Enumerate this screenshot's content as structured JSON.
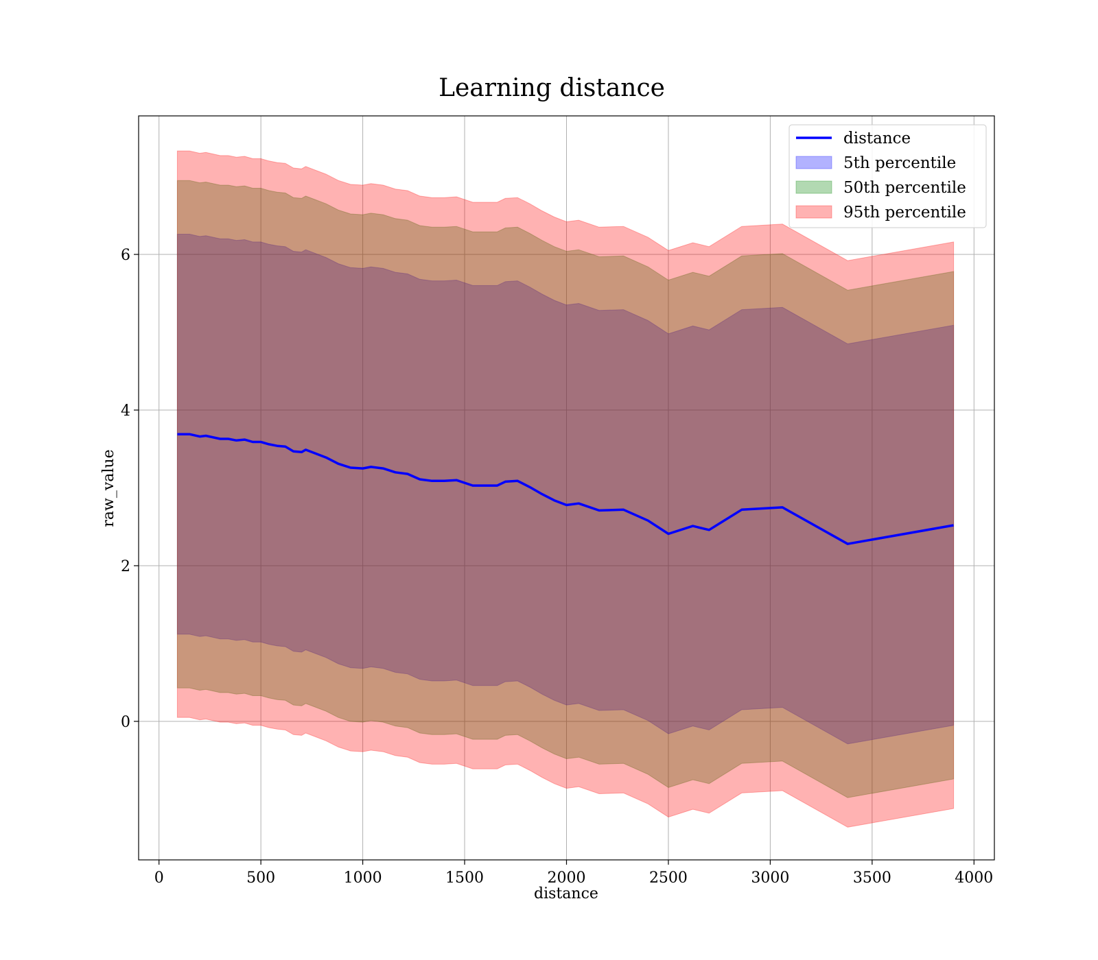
{
  "chart_data": {
    "type": "line",
    "title": "Learning distance",
    "xlabel": "distance",
    "ylabel": "raw_value",
    "xlim": [
      -100,
      4100
    ],
    "ylim": [
      -1.78,
      7.78
    ],
    "xticks": [
      0,
      500,
      1000,
      1500,
      2000,
      2500,
      3000,
      3500,
      4000
    ],
    "yticks": [
      0,
      2,
      4,
      6
    ],
    "grid": true,
    "legend_position": "top-right",
    "x": [
      90,
      150,
      200,
      230,
      300,
      340,
      380,
      420,
      460,
      500,
      540,
      580,
      620,
      660,
      700,
      720,
      760,
      820,
      880,
      940,
      1000,
      1040,
      1100,
      1160,
      1220,
      1280,
      1340,
      1400,
      1460,
      1540,
      1600,
      1660,
      1700,
      1760,
      1820,
      1880,
      1940,
      2000,
      2060,
      2160,
      2280,
      2400,
      2500,
      2620,
      2700,
      2860,
      3060,
      3380,
      3900
    ],
    "series": [
      {
        "name": "distance",
        "kind": "line",
        "color": "#0000ff",
        "values": [
          3.69,
          3.69,
          3.66,
          3.67,
          3.63,
          3.63,
          3.61,
          3.62,
          3.59,
          3.59,
          3.56,
          3.54,
          3.53,
          3.47,
          3.46,
          3.49,
          3.45,
          3.39,
          3.31,
          3.26,
          3.25,
          3.27,
          3.25,
          3.2,
          3.18,
          3.11,
          3.09,
          3.09,
          3.1,
          3.03,
          3.03,
          3.03,
          3.08,
          3.09,
          3.01,
          2.92,
          2.84,
          2.78,
          2.8,
          2.71,
          2.72,
          2.58,
          2.41,
          2.51,
          2.46,
          2.72,
          2.75,
          2.28,
          2.52
        ]
      },
      {
        "name": "5th percentile",
        "kind": "band",
        "color": "#0000ff",
        "lower": [
          1.12,
          1.12,
          1.09,
          1.1,
          1.06,
          1.06,
          1.04,
          1.05,
          1.02,
          1.02,
          0.99,
          0.97,
          0.96,
          0.9,
          0.89,
          0.92,
          0.88,
          0.82,
          0.74,
          0.69,
          0.68,
          0.7,
          0.68,
          0.63,
          0.61,
          0.54,
          0.52,
          0.52,
          0.53,
          0.46,
          0.46,
          0.46,
          0.51,
          0.52,
          0.44,
          0.35,
          0.27,
          0.21,
          0.23,
          0.14,
          0.15,
          0.01,
          -0.16,
          -0.06,
          -0.11,
          0.15,
          0.18,
          -0.29,
          -0.05
        ],
        "upper": [
          6.26,
          6.26,
          6.23,
          6.24,
          6.2,
          6.2,
          6.18,
          6.19,
          6.16,
          6.16,
          6.13,
          6.11,
          6.1,
          6.04,
          6.03,
          6.06,
          6.02,
          5.96,
          5.88,
          5.83,
          5.82,
          5.84,
          5.82,
          5.77,
          5.75,
          5.68,
          5.66,
          5.66,
          5.67,
          5.6,
          5.6,
          5.6,
          5.65,
          5.66,
          5.58,
          5.49,
          5.41,
          5.35,
          5.37,
          5.28,
          5.29,
          5.15,
          4.98,
          5.08,
          5.03,
          5.29,
          5.32,
          4.85,
          5.09
        ]
      },
      {
        "name": "50th percentile",
        "kind": "band",
        "color": "#008000",
        "lower": [
          0.43,
          0.43,
          0.4,
          0.41,
          0.37,
          0.37,
          0.35,
          0.36,
          0.33,
          0.33,
          0.3,
          0.28,
          0.27,
          0.21,
          0.2,
          0.23,
          0.19,
          0.13,
          0.05,
          0.0,
          -0.01,
          0.01,
          -0.01,
          -0.06,
          -0.08,
          -0.15,
          -0.17,
          -0.17,
          -0.16,
          -0.23,
          -0.23,
          -0.23,
          -0.18,
          -0.17,
          -0.25,
          -0.34,
          -0.42,
          -0.48,
          -0.46,
          -0.55,
          -0.54,
          -0.68,
          -0.85,
          -0.75,
          -0.8,
          -0.54,
          -0.51,
          -0.98,
          -0.74
        ],
        "upper": [
          6.95,
          6.95,
          6.92,
          6.93,
          6.89,
          6.89,
          6.87,
          6.88,
          6.85,
          6.85,
          6.82,
          6.8,
          6.79,
          6.73,
          6.72,
          6.75,
          6.71,
          6.65,
          6.57,
          6.52,
          6.51,
          6.53,
          6.51,
          6.46,
          6.44,
          6.37,
          6.35,
          6.35,
          6.36,
          6.29,
          6.29,
          6.29,
          6.34,
          6.35,
          6.27,
          6.18,
          6.1,
          6.04,
          6.06,
          5.97,
          5.98,
          5.84,
          5.67,
          5.77,
          5.72,
          5.98,
          6.01,
          5.54,
          5.78
        ]
      },
      {
        "name": "95th percentile",
        "kind": "band",
        "color": "#ff0000",
        "lower": [
          0.05,
          0.05,
          0.02,
          0.03,
          -0.01,
          -0.01,
          -0.03,
          -0.02,
          -0.05,
          -0.05,
          -0.08,
          -0.1,
          -0.11,
          -0.17,
          -0.18,
          -0.15,
          -0.19,
          -0.25,
          -0.33,
          -0.38,
          -0.39,
          -0.37,
          -0.39,
          -0.44,
          -0.46,
          -0.53,
          -0.55,
          -0.55,
          -0.54,
          -0.61,
          -0.61,
          -0.61,
          -0.56,
          -0.55,
          -0.63,
          -0.72,
          -0.8,
          -0.86,
          -0.84,
          -0.93,
          -0.92,
          -1.06,
          -1.23,
          -1.13,
          -1.18,
          -0.92,
          -0.89,
          -1.36,
          -1.12
        ],
        "upper": [
          7.33,
          7.33,
          7.3,
          7.31,
          7.27,
          7.27,
          7.25,
          7.26,
          7.23,
          7.23,
          7.2,
          7.18,
          7.17,
          7.11,
          7.1,
          7.13,
          7.09,
          7.03,
          6.95,
          6.9,
          6.89,
          6.91,
          6.89,
          6.84,
          6.82,
          6.75,
          6.73,
          6.73,
          6.74,
          6.67,
          6.67,
          6.67,
          6.72,
          6.73,
          6.65,
          6.56,
          6.48,
          6.42,
          6.44,
          6.35,
          6.36,
          6.22,
          6.05,
          6.15,
          6.1,
          6.36,
          6.39,
          5.92,
          6.16
        ]
      }
    ]
  }
}
